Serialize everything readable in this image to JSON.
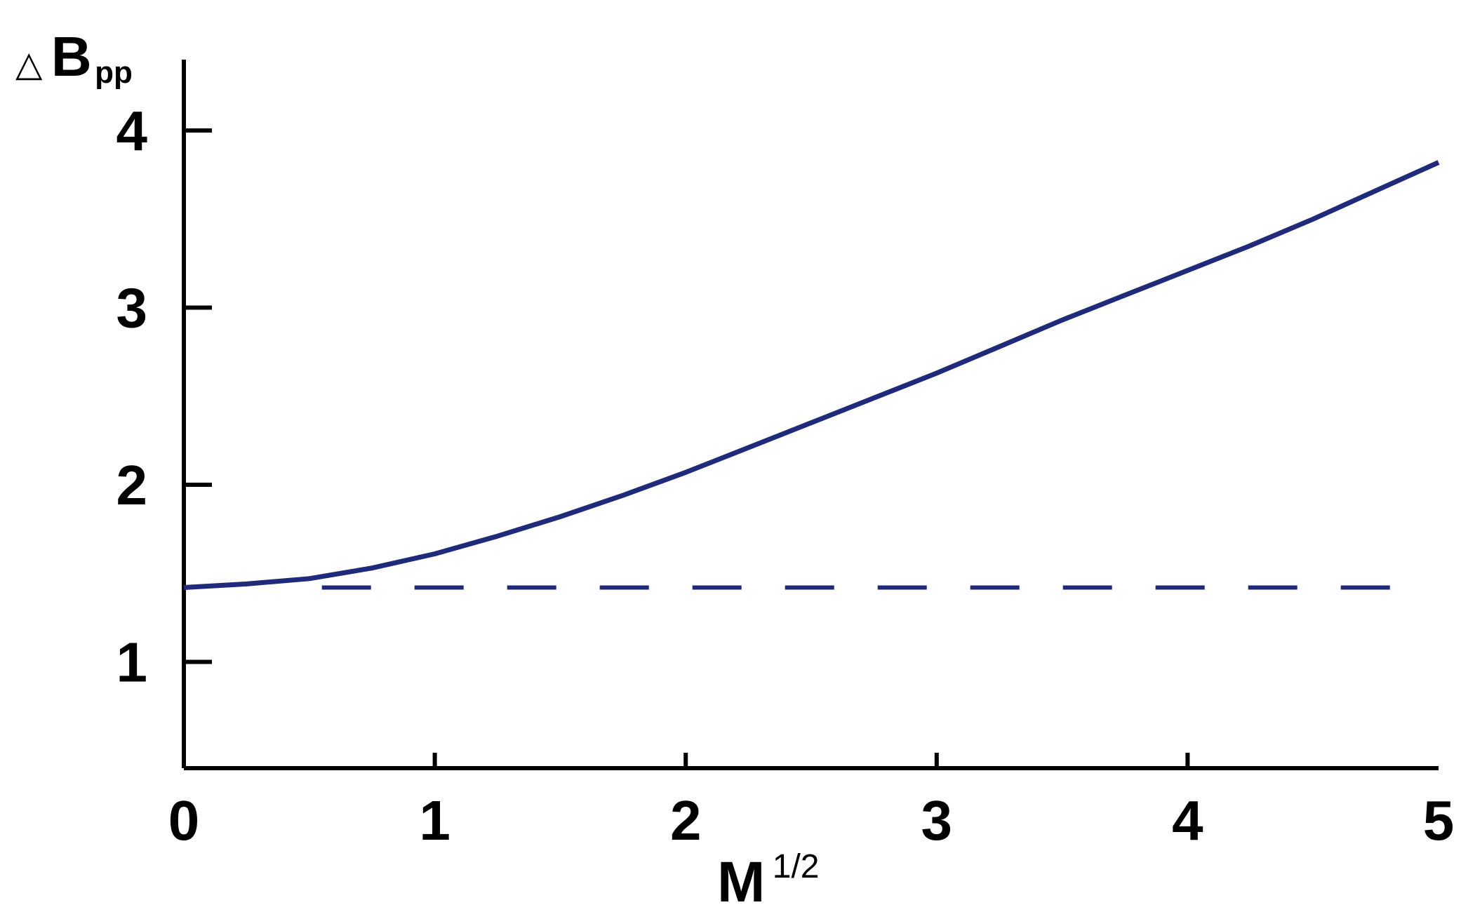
{
  "chart_data": {
    "type": "line",
    "title": "",
    "xlabel": {
      "base": "M",
      "superscript": "1/2"
    },
    "ylabel": {
      "prefix": "△",
      "base": "B",
      "subscript": "pp"
    },
    "xlim": [
      0,
      5
    ],
    "ylim": [
      0.4,
      4.4
    ],
    "x_ticks": [
      0,
      1,
      2,
      3,
      4,
      5
    ],
    "y_ticks": [
      1,
      2,
      3,
      4
    ],
    "grid": false,
    "legend": "none",
    "series": [
      {
        "style": "solid",
        "color": "#1f2a7a",
        "x": [
          0,
          0.25,
          0.5,
          0.75,
          1.0,
          1.25,
          1.5,
          1.75,
          2.0,
          2.25,
          2.5,
          2.75,
          3.0,
          3.25,
          3.5,
          3.75,
          4.0,
          4.25,
          4.5,
          4.75,
          5.0
        ],
        "y": [
          1.42,
          1.44,
          1.47,
          1.53,
          1.61,
          1.71,
          1.82,
          1.94,
          2.07,
          2.21,
          2.35,
          2.49,
          2.63,
          2.78,
          2.93,
          3.07,
          3.21,
          3.35,
          3.5,
          3.66,
          3.82
        ]
      },
      {
        "style": "dashed",
        "color": "#1f2a7a",
        "x": [
          0.55,
          4.88
        ],
        "y": [
          1.42,
          1.42
        ]
      }
    ]
  }
}
